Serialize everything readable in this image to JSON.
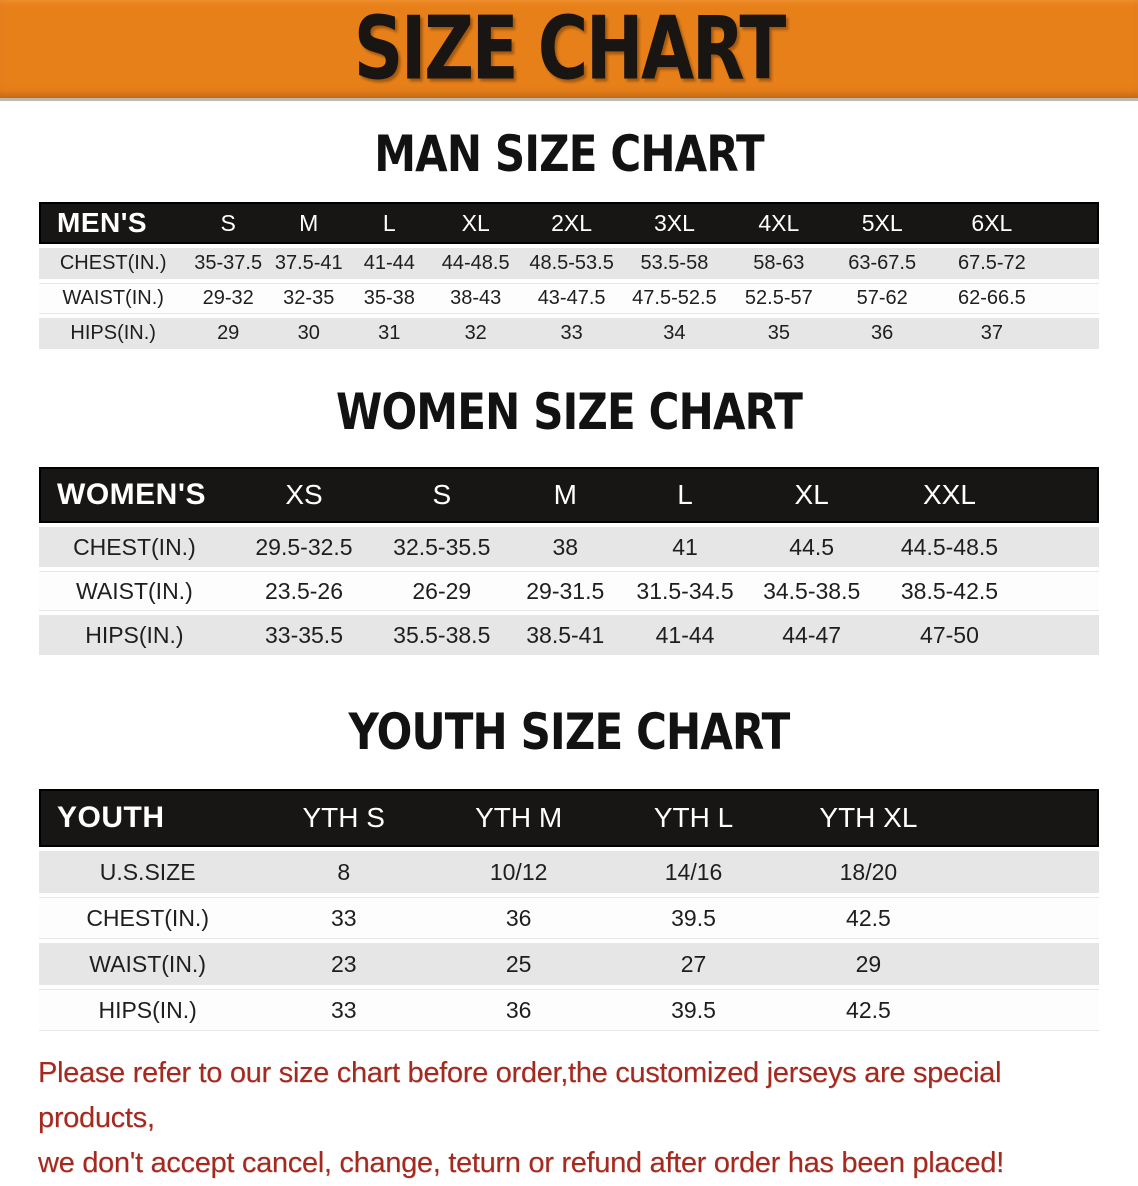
{
  "banner": {
    "title": "SIZE CHART",
    "bg_color": "#E8801A",
    "text_color": "#181512"
  },
  "colors": {
    "table_header_bg": "#171615",
    "table_header_text": "#ffffff",
    "row_stripe": "#e6e6e6",
    "disclaimer_red": "#A42A20"
  },
  "sections": [
    {
      "title": "MAN SIZE CHART",
      "label": "MEN'S",
      "columns": [
        "S",
        "M",
        "L",
        "XL",
        "2XL",
        "3XL",
        "4XL",
        "5XL",
        "6XL"
      ],
      "rows": [
        {
          "label": "CHEST(IN.)",
          "values": [
            "35-37.5",
            "37.5-41",
            "41-44",
            "44-48.5",
            "48.5-53.5",
            "53.5-58",
            "58-63",
            "63-67.5",
            "67.5-72"
          ]
        },
        {
          "label": "WAIST(IN.)",
          "values": [
            "29-32",
            "32-35",
            "35-38",
            "38-43",
            "43-47.5",
            "47.5-52.5",
            "52.5-57",
            "57-62",
            "62-66.5"
          ]
        },
        {
          "label": "HIPS(IN.)",
          "values": [
            "29",
            "30",
            "31",
            "32",
            "33",
            "34",
            "35",
            "36",
            "37"
          ]
        }
      ]
    },
    {
      "title": "WOMEN SIZE CHART",
      "label": "WOMEN'S",
      "columns": [
        "XS",
        "S",
        "M",
        "L",
        "XL",
        "XXL"
      ],
      "rows": [
        {
          "label": "CHEST(IN.)",
          "values": [
            "29.5-32.5",
            "32.5-35.5",
            "38",
            "41",
            "44.5",
            "44.5-48.5"
          ]
        },
        {
          "label": "WAIST(IN.)",
          "values": [
            "23.5-26",
            "26-29",
            "29-31.5",
            "31.5-34.5",
            "34.5-38.5",
            "38.5-42.5"
          ]
        },
        {
          "label": "HIPS(IN.)",
          "values": [
            "33-35.5",
            "35.5-38.5",
            "38.5-41",
            "41-44",
            "44-47",
            "47-50"
          ]
        }
      ]
    },
    {
      "title": "YOUTH SIZE CHART",
      "label": "YOUTH",
      "columns": [
        "YTH S",
        "YTH M",
        "YTH L",
        "YTH XL"
      ],
      "rows": [
        {
          "label": "U.S.SIZE",
          "values": [
            "8",
            "10/12",
            "14/16",
            "18/20"
          ]
        },
        {
          "label": "CHEST(IN.)",
          "values": [
            "33",
            "36",
            "39.5",
            "42.5"
          ]
        },
        {
          "label": "WAIST(IN.)",
          "values": [
            "23",
            "25",
            "27",
            "29"
          ]
        },
        {
          "label": "HIPS(IN.)",
          "values": [
            "33",
            "36",
            "39.5",
            "42.5"
          ]
        }
      ]
    }
  ],
  "disclaimer": {
    "line1": "Please refer to our size chart before order,the customized jerseys are special products,",
    "line2": "we don't accept cancel, change, teturn or refund after order has been placed!"
  }
}
